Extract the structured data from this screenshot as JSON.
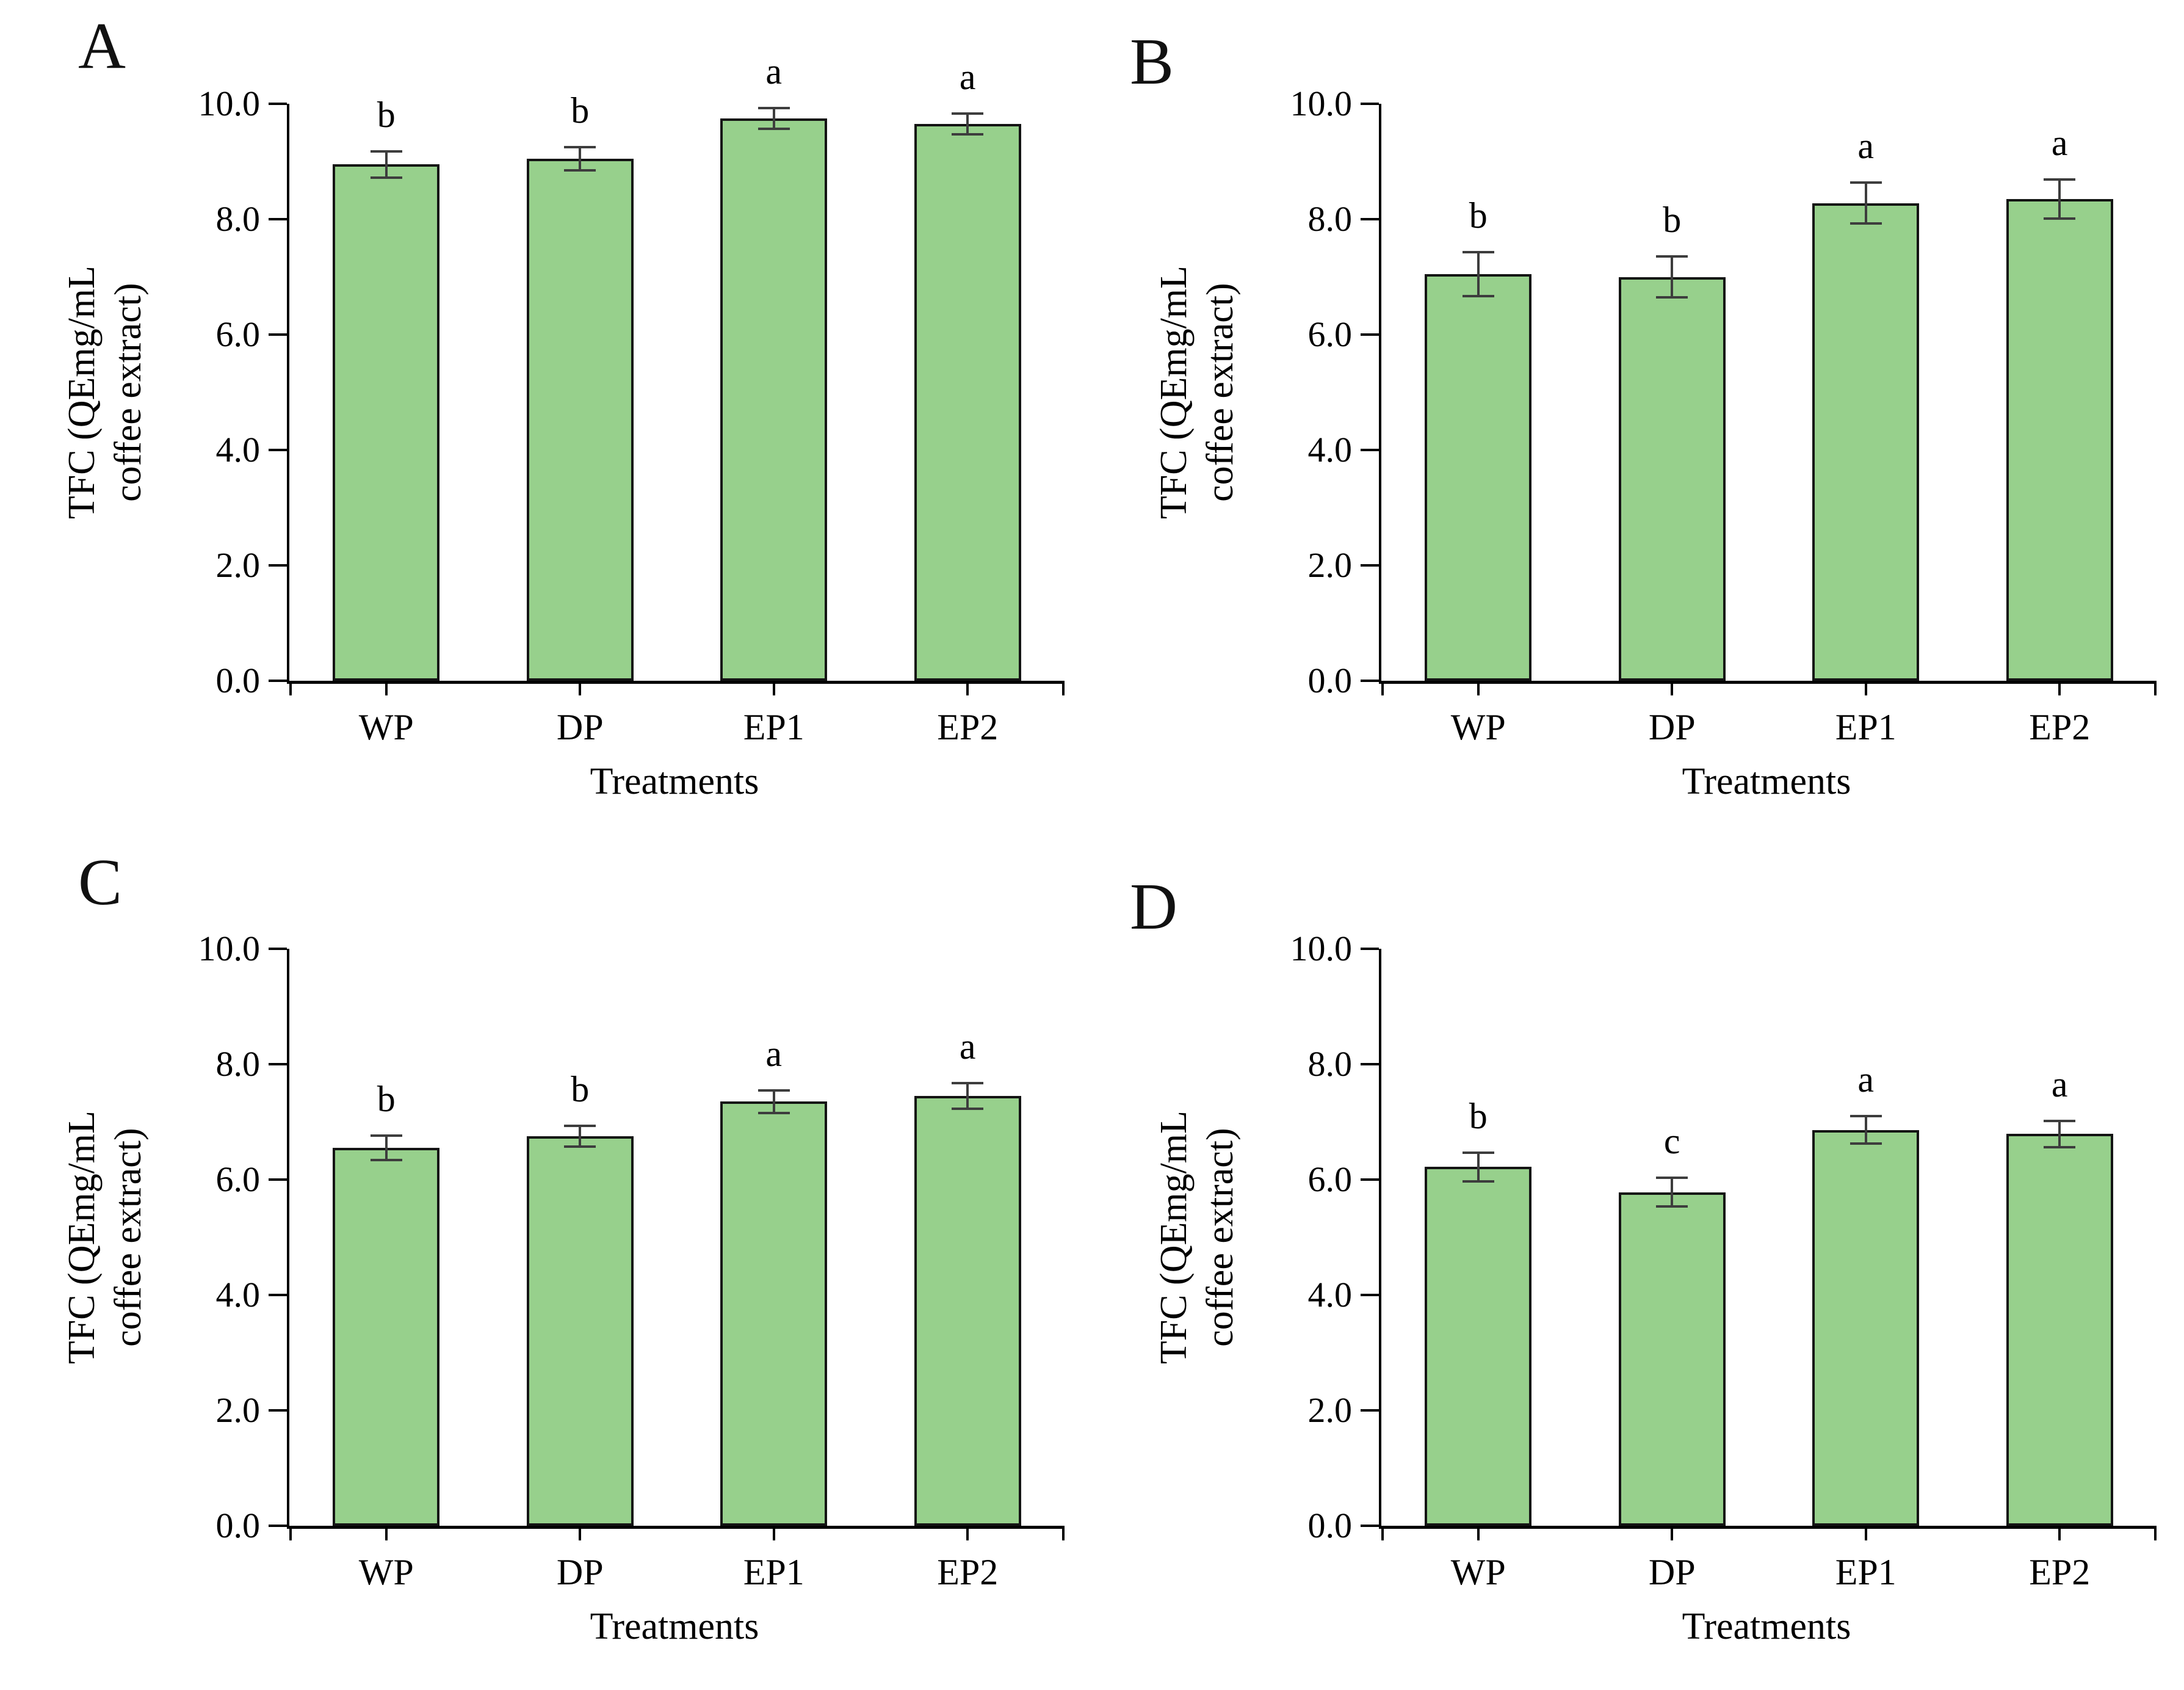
{
  "figure": {
    "background": "#ffffff",
    "bar_fill": "#97D08C",
    "bar_border": "#141414",
    "error_bar_color": "#3d3d3d",
    "axis_color": "#000000"
  },
  "chart_data": [
    {
      "type": "bar",
      "panel_label": "A",
      "categories": [
        "WP",
        "DP",
        "EP1",
        "EP2"
      ],
      "values": [
        8.95,
        9.05,
        9.75,
        9.65
      ],
      "errors": [
        0.25,
        0.22,
        0.2,
        0.2
      ],
      "sig_letters": [
        "b",
        "b",
        "a",
        "a"
      ],
      "ylabel_line1": "TFC (QEmg/mL",
      "ylabel_line2": "coffee extract)",
      "xlabel": "Treatments",
      "ylim": [
        0,
        10
      ],
      "ytick_labels": [
        "0.0",
        "2.0",
        "4.0",
        "6.0",
        "8.0",
        "10.0"
      ],
      "grid": false,
      "legend": "none"
    },
    {
      "type": "bar",
      "panel_label": "B",
      "categories": [
        "WP",
        "DP",
        "EP1",
        "EP2"
      ],
      "values": [
        7.05,
        7.0,
        8.28,
        8.35
      ],
      "errors": [
        0.4,
        0.38,
        0.38,
        0.36
      ],
      "sig_letters": [
        "b",
        "b",
        "a",
        "a"
      ],
      "ylabel_line1": "TFC (QEmg/mL",
      "ylabel_line2": "coffee extract)",
      "xlabel": "Treatments",
      "ylim": [
        0,
        10
      ],
      "ytick_labels": [
        "0.0",
        "2.0",
        "4.0",
        "6.0",
        "8.0",
        "10.0"
      ],
      "grid": false,
      "legend": "none"
    },
    {
      "type": "bar",
      "panel_label": "C",
      "categories": [
        "WP",
        "DP",
        "EP1",
        "EP2"
      ],
      "values": [
        6.55,
        6.75,
        7.35,
        7.45
      ],
      "errors": [
        0.23,
        0.2,
        0.22,
        0.24
      ],
      "sig_letters": [
        "b",
        "b",
        "a",
        "a"
      ],
      "ylabel_line1": "TFC (QEmg/mL",
      "ylabel_line2": "coffee extract)",
      "xlabel": "Treatments",
      "ylim": [
        0,
        10
      ],
      "ytick_labels": [
        "0.0",
        "2.0",
        "4.0",
        "6.0",
        "8.0",
        "10.0"
      ],
      "grid": false,
      "legend": "none"
    },
    {
      "type": "bar",
      "panel_label": "D",
      "categories": [
        "WP",
        "DP",
        "EP1",
        "EP2"
      ],
      "values": [
        6.22,
        5.78,
        6.86,
        6.79
      ],
      "errors": [
        0.27,
        0.27,
        0.26,
        0.25
      ],
      "sig_letters": [
        "b",
        "c",
        "a",
        "a"
      ],
      "ylabel_line1": "TFC (QEmg/mL",
      "ylabel_line2": "coffee extract)",
      "xlabel": "Treatments",
      "ylim": [
        0,
        10
      ],
      "ytick_labels": [
        "0.0",
        "2.0",
        "4.0",
        "6.0",
        "8.0",
        "10.0"
      ],
      "grid": false,
      "legend": "none"
    }
  ]
}
